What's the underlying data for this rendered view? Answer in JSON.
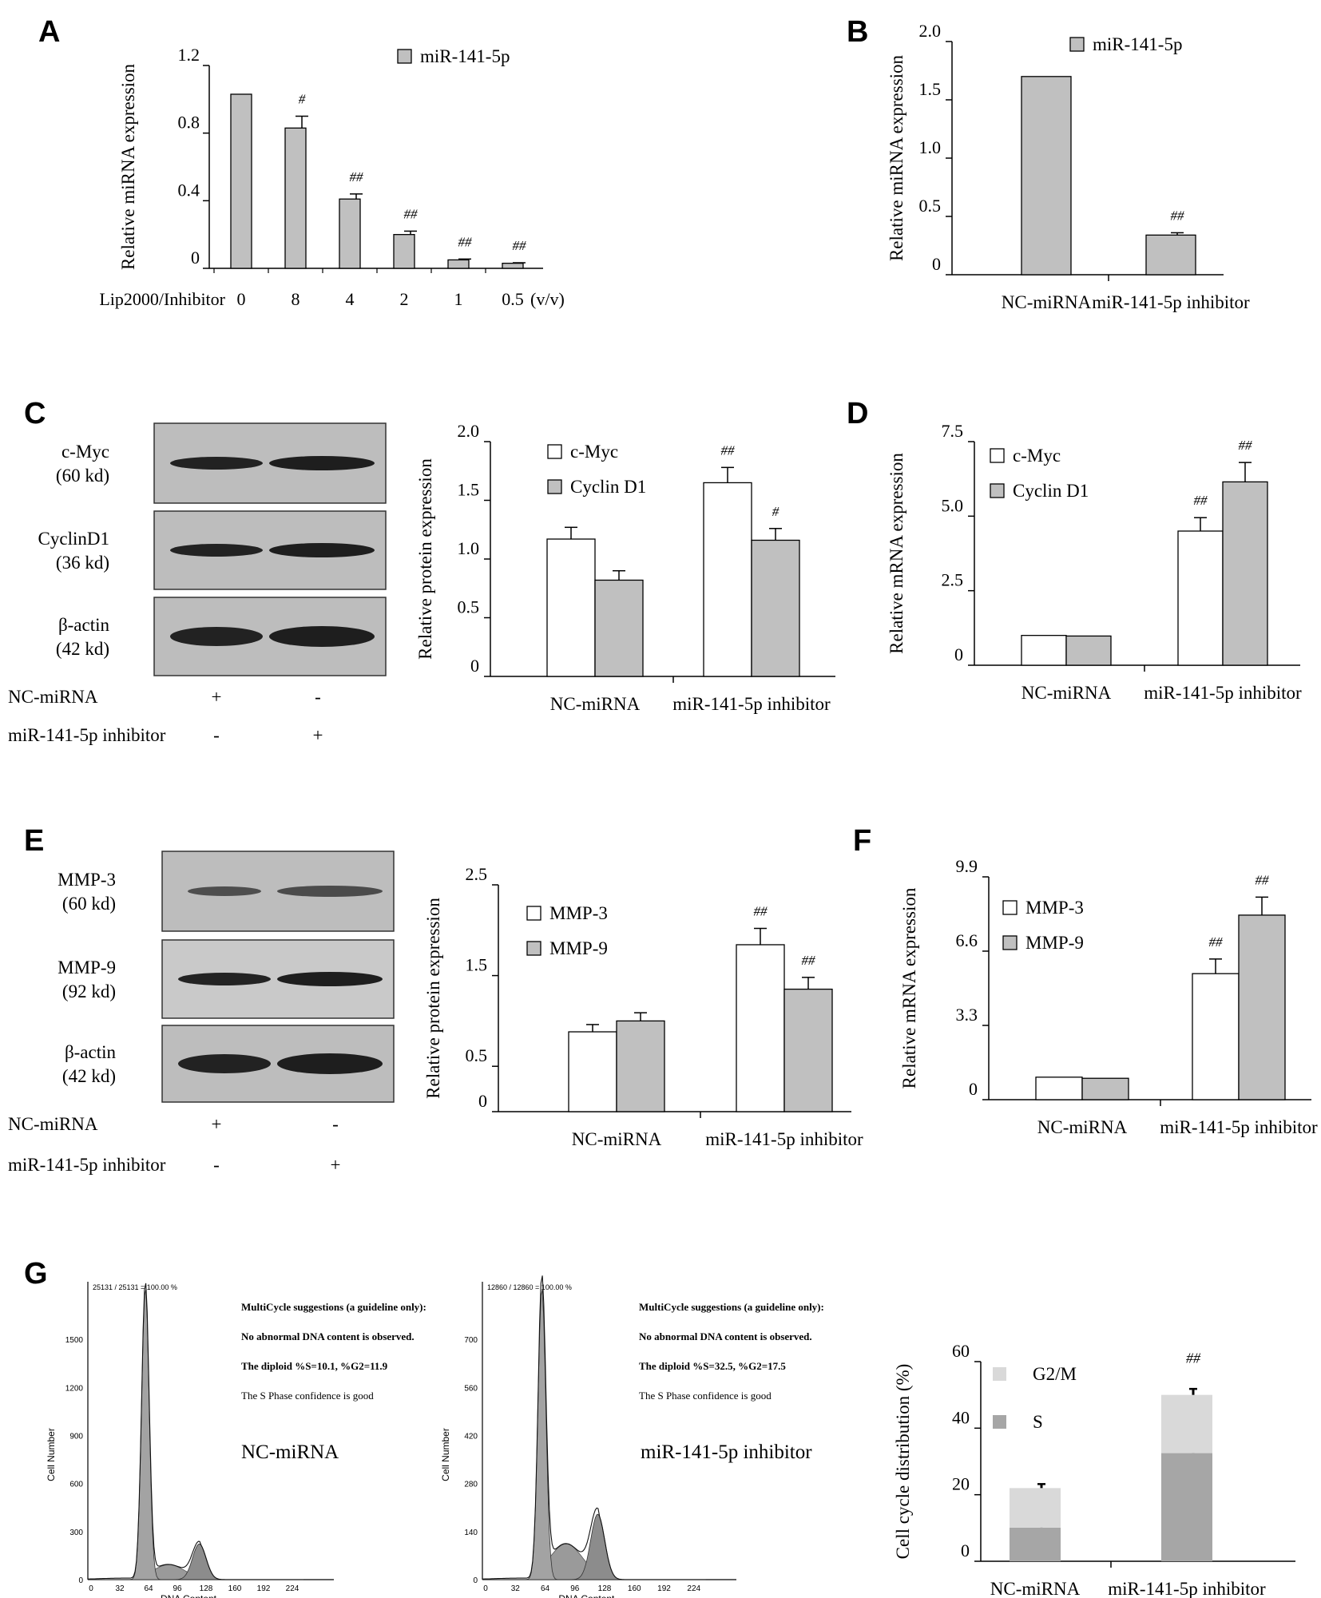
{
  "panel_labels": [
    "A",
    "B",
    "C",
    "D",
    "E",
    "F",
    "G"
  ],
  "chart_data": [
    {
      "id": "A",
      "type": "bar",
      "ylabel": "Relative miRNA expression",
      "x_prefix": "Lip2000/Inhibitor",
      "x_suffix": "(v/v)",
      "categories": [
        "0",
        "8",
        "4",
        "2",
        "1",
        "0.5"
      ],
      "ylim": [
        0,
        1.2
      ],
      "yticks": [
        {
          "v": 0,
          "t": "0"
        },
        {
          "v": 0.4,
          "t": "0.4"
        },
        {
          "v": 0.8,
          "t": "0.8"
        },
        {
          "v": 1.2,
          "t": "1.2"
        }
      ],
      "legend_placement": "top-right",
      "series": [
        {
          "name": "miR-141-5p",
          "color": "#c0c0c0",
          "values": [
            1.03,
            0.83,
            0.41,
            0.2,
            0.05,
            0.03
          ],
          "errors": [
            0,
            0.07,
            0.03,
            0.02,
            0.005,
            0.003
          ],
          "marks": [
            "",
            "#",
            "##",
            "##",
            "##",
            "##"
          ]
        }
      ]
    },
    {
      "id": "B",
      "type": "bar",
      "ylabel": "Relative miRNA expression",
      "categories": [
        "NC-miRNA",
        "miR-141-5p inhibitor"
      ],
      "ylim": [
        0,
        2.0
      ],
      "yticks": [
        {
          "v": 0,
          "t": "0"
        },
        {
          "v": 0.5,
          "t": "0.5"
        },
        {
          "v": 1.0,
          "t": "1.0"
        },
        {
          "v": 1.5,
          "t": "1.5"
        },
        {
          "v": 2.0,
          "t": "2.0"
        }
      ],
      "legend_placement": "top-right",
      "series": [
        {
          "name": "miR-141-5p",
          "color": "#c0c0c0",
          "values": [
            1.7,
            0.34
          ],
          "errors": [
            0,
            0.02
          ],
          "marks": [
            "",
            "##"
          ]
        }
      ]
    },
    {
      "id": "C",
      "type": "bar",
      "ylabel": "Relative protein expression",
      "categories": [
        "NC-miRNA",
        "miR-141-5p inhibitor"
      ],
      "ylim": [
        0,
        2.0
      ],
      "yticks": [
        {
          "v": 0,
          "t": "0"
        },
        {
          "v": 0.5,
          "t": "0.5"
        },
        {
          "v": 1.0,
          "t": "1.0"
        },
        {
          "v": 1.5,
          "t": "1.5"
        },
        {
          "v": 2.0,
          "t": "2.0"
        }
      ],
      "legend_placement": "top-left",
      "series": [
        {
          "name": "c-Myc",
          "color": "#ffffff",
          "values": [
            1.17,
            1.65
          ],
          "errors": [
            0.1,
            0.13
          ],
          "marks": [
            "",
            "##"
          ]
        },
        {
          "name": "Cyclin D1",
          "color": "#c0c0c0",
          "values": [
            0.82,
            1.16
          ],
          "errors": [
            0.08,
            0.1
          ],
          "marks": [
            "",
            "#"
          ]
        }
      ]
    },
    {
      "id": "D",
      "type": "bar",
      "ylabel": "Relative mRNA expression",
      "categories": [
        "NC-miRNA",
        "miR-141-5p inhibitor"
      ],
      "ylim": [
        0,
        7.5
      ],
      "yticks": [
        {
          "v": 0,
          "t": "0"
        },
        {
          "v": 2.5,
          "t": "2.5"
        },
        {
          "v": 5.0,
          "t": "5.0"
        },
        {
          "v": 7.5,
          "t": "7.5"
        }
      ],
      "legend_placement": "top-left",
      "series": [
        {
          "name": "c-Myc",
          "color": "#ffffff",
          "values": [
            1.0,
            4.5
          ],
          "errors": [
            0,
            0.45
          ],
          "marks": [
            "",
            "##"
          ]
        },
        {
          "name": "Cyclin D1",
          "color": "#c0c0c0",
          "values": [
            0.98,
            6.15
          ],
          "errors": [
            0,
            0.65
          ],
          "marks": [
            "",
            "##"
          ]
        }
      ]
    },
    {
      "id": "E",
      "type": "bar",
      "ylabel": "Relative protein expression",
      "categories": [
        "NC-miRNA",
        "miR-141-5p inhibitor"
      ],
      "ylim": [
        0,
        2.5
      ],
      "yticks": [
        {
          "v": 0,
          "t": "0"
        },
        {
          "v": 0.5,
          "t": "0.5"
        },
        {
          "v": 1.5,
          "t": "1.5"
        },
        {
          "v": 2.5,
          "t": "2.5"
        }
      ],
      "legend_placement": "top-left",
      "series": [
        {
          "name": "MMP-3",
          "color": "#ffffff",
          "values": [
            0.88,
            1.84
          ],
          "errors": [
            0.08,
            0.18
          ],
          "marks": [
            "",
            "##"
          ]
        },
        {
          "name": "MMP-9",
          "color": "#c0c0c0",
          "values": [
            1.0,
            1.35
          ],
          "errors": [
            0.09,
            0.13
          ],
          "marks": [
            "",
            "##"
          ]
        }
      ]
    },
    {
      "id": "F",
      "type": "bar",
      "ylabel": "Relative mRNA expression",
      "categories": [
        "NC-miRNA",
        "miR-141-5p inhibitor"
      ],
      "ylim": [
        0,
        9.9
      ],
      "yticks": [
        {
          "v": 0,
          "t": "0"
        },
        {
          "v": 3.3,
          "t": "3.3"
        },
        {
          "v": 6.6,
          "t": "6.6"
        },
        {
          "v": 9.9,
          "t": "9.9"
        }
      ],
      "legend_placement": "top-left",
      "series": [
        {
          "name": "MMP-3",
          "color": "#ffffff",
          "values": [
            1.0,
            5.6
          ],
          "errors": [
            0,
            0.65
          ],
          "marks": [
            "",
            "##"
          ]
        },
        {
          "name": "MMP-9",
          "color": "#c0c0c0",
          "values": [
            0.95,
            8.2
          ],
          "errors": [
            0,
            0.8
          ],
          "marks": [
            "",
            "##"
          ]
        }
      ]
    },
    {
      "id": "G",
      "type": "bar",
      "stacked": true,
      "ylabel": "Cell cycle distribution (%)",
      "categories": [
        "NC-miRNA",
        "miR-141-5p inhibitor"
      ],
      "ylim": [
        0,
        60
      ],
      "yticks": [
        {
          "v": 0,
          "t": "0"
        },
        {
          "v": 20,
          "t": "20"
        },
        {
          "v": 40,
          "t": "40"
        },
        {
          "v": 60,
          "t": "60"
        }
      ],
      "legend_placement": "top-left",
      "marks": [
        "",
        "##"
      ],
      "series": [
        {
          "name": "S",
          "color": "#a6a6a6",
          "values": [
            10.1,
            32.5
          ],
          "errors": [
            0.8,
            3.0
          ]
        },
        {
          "name": "G2/M",
          "color": "#d9d9d9",
          "values": [
            11.9,
            17.5
          ],
          "errors": [
            1.2,
            1.8
          ]
        }
      ]
    }
  ],
  "blots": {
    "C": {
      "bands": [
        {
          "name": "c-Myc",
          "kd": "(60 kd)"
        },
        {
          "name": "CyclinD1",
          "kd": "(36 kd)"
        },
        {
          "name": "β-actin",
          "kd": "(42 kd)"
        }
      ],
      "rows": [
        {
          "label": "NC-miRNA",
          "signs": [
            "+",
            "-"
          ]
        },
        {
          "label": "miR-141-5p inhibitor",
          "signs": [
            "-",
            "+"
          ]
        }
      ]
    },
    "E": {
      "bands": [
        {
          "name": "MMP-3",
          "kd": "(60 kd)"
        },
        {
          "name": "MMP-9",
          "kd": "(92 kd)"
        },
        {
          "name": "β-actin",
          "kd": "(42 kd)"
        }
      ],
      "rows": [
        {
          "label": "NC-miRNA",
          "signs": [
            "+",
            "-"
          ]
        },
        {
          "label": "miR-141-5p inhibitor",
          "signs": [
            "-",
            "+"
          ]
        }
      ]
    }
  },
  "flow_histograms": [
    {
      "header": "25131 / 25131 = 100.00 %",
      "group": "NC-miRNA",
      "ylabel": "Cell Number",
      "xlabel": "DNA Content",
      "yticks": [
        "0",
        "300",
        "600",
        "900",
        "1200",
        "1500"
      ],
      "xticks": [
        "0",
        "32",
        "64",
        "96",
        "128",
        "160",
        "192",
        "224"
      ],
      "notes": [
        "MultiCycle suggestions (a guideline only):",
        "No abnormal DNA content is observed.",
        "The diploid %S=10.1, %G2=11.9",
        "The S Phase confidence is good"
      ],
      "g1_peak": 1.0,
      "s_level": 0.05,
      "g2_peak": 0.12
    },
    {
      "header": "12860 / 12860 = 100.00 %",
      "group": "miR-141-5p inhibitor",
      "ylabel": "Cell Number",
      "xlabel": "DNA Content",
      "yticks": [
        "0",
        "140",
        "280",
        "420",
        "560",
        "700"
      ],
      "xticks": [
        "0",
        "32",
        "64",
        "96",
        "128",
        "160",
        "192",
        "224"
      ],
      "notes": [
        "MultiCycle suggestions (a guideline only):",
        "No abnormal DNA content is observed.",
        "The diploid %S=32.5, %G2=17.5",
        "The S Phase confidence is good"
      ],
      "g1_peak": 1.0,
      "s_level": 0.12,
      "g2_peak": 0.22
    }
  ]
}
